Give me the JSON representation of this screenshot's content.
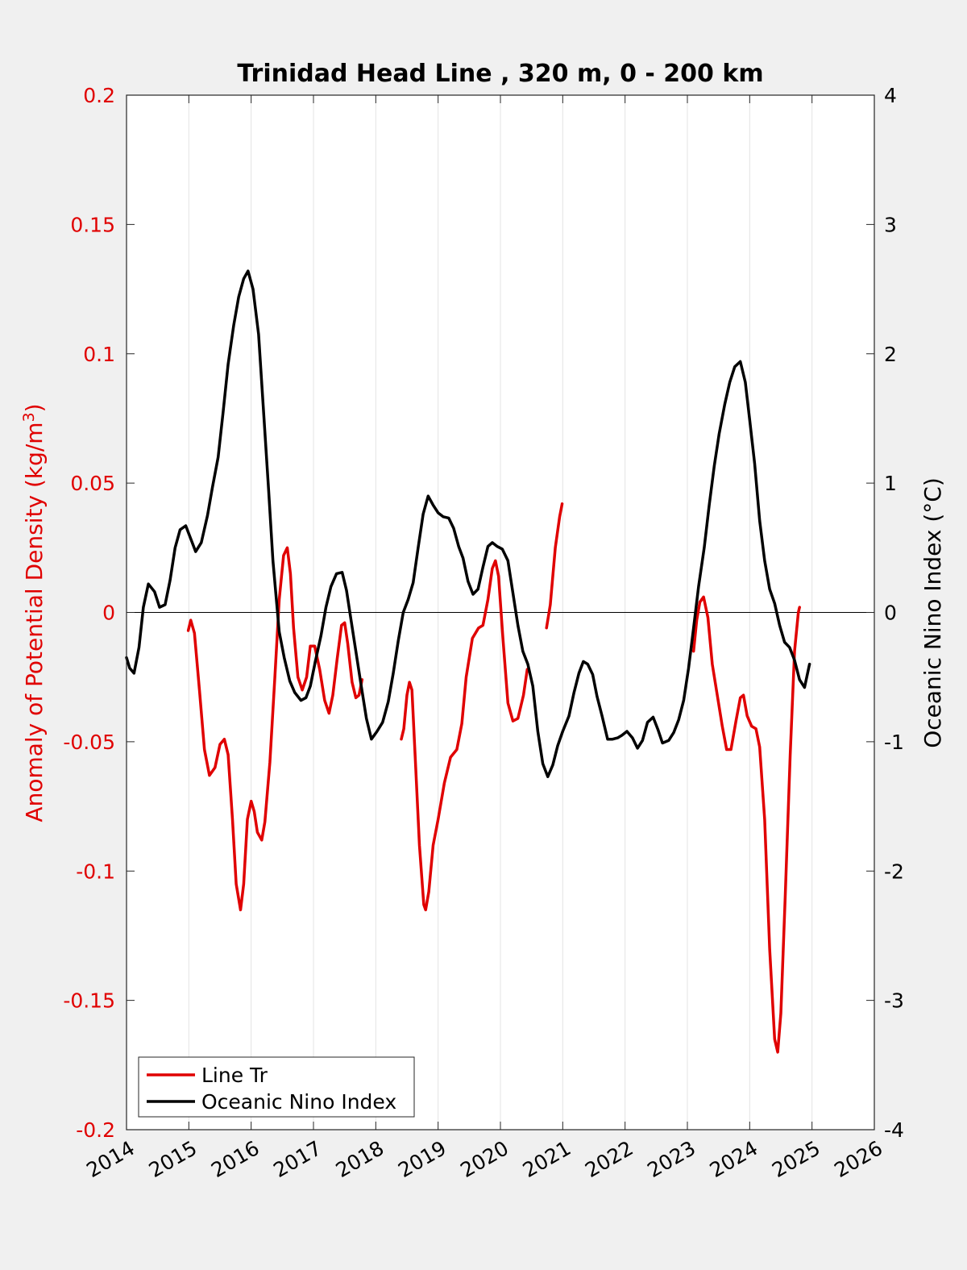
{
  "chart_data": {
    "type": "line",
    "title": "Trinidad Head Line , 320 m, 0 - 200 km",
    "xlabel": "",
    "xlim": [
      2014,
      2026
    ],
    "x_ticks": [
      "2014",
      "2015",
      "2016",
      "2017",
      "2018",
      "2019",
      "2020",
      "2021",
      "2022",
      "2023",
      "2024",
      "2025",
      "2026"
    ],
    "y_left": {
      "label": "Anomaly of Potential Density (kg/m",
      "label_superscript": "3",
      "label_close": ")",
      "ylim": [
        -0.2,
        0.2
      ],
      "ticks": [
        "0.2",
        "0.15",
        "0.1",
        "0.05",
        "0",
        "-0.05",
        "-0.1",
        "-0.15",
        "-0.2"
      ],
      "color": "#e00000"
    },
    "y_right": {
      "label": "Oceanic Nino Index (°C)",
      "ylim": [
        -4,
        4
      ],
      "ticks": [
        "4",
        "3",
        "2",
        "1",
        "0",
        "-1",
        "-2",
        "-3",
        "-4"
      ],
      "color": "#000000"
    },
    "grid": "vertical",
    "legend_position": "bottom-left",
    "series": [
      {
        "name": "Line Tr",
        "axis": "left",
        "color": "#e00000",
        "segments": [
          [
            [
              2014.99,
              -0.007
            ],
            [
              2015.03,
              -0.003
            ],
            [
              2015.09,
              -0.008
            ],
            [
              2015.17,
              -0.03
            ],
            [
              2015.25,
              -0.053
            ],
            [
              2015.33,
              -0.063
            ],
            [
              2015.42,
              -0.06
            ],
            [
              2015.5,
              -0.051
            ],
            [
              2015.57,
              -0.049
            ],
            [
              2015.63,
              -0.055
            ],
            [
              2015.7,
              -0.08
            ],
            [
              2015.76,
              -0.105
            ],
            [
              2015.83,
              -0.115
            ],
            [
              2015.88,
              -0.105
            ],
            [
              2015.94,
              -0.08
            ],
            [
              2016.0,
              -0.073
            ],
            [
              2016.05,
              -0.077
            ],
            [
              2016.1,
              -0.085
            ],
            [
              2016.17,
              -0.088
            ],
            [
              2016.22,
              -0.081
            ],
            [
              2016.3,
              -0.058
            ],
            [
              2016.38,
              -0.025
            ],
            [
              2016.45,
              0.005
            ],
            [
              2016.52,
              0.022
            ],
            [
              2016.58,
              0.025
            ],
            [
              2016.63,
              0.015
            ],
            [
              2016.68,
              -0.006
            ],
            [
              2016.75,
              -0.025
            ],
            [
              2016.82,
              -0.03
            ],
            [
              2016.89,
              -0.025
            ],
            [
              2016.95,
              -0.013
            ],
            [
              2017.02,
              -0.013
            ],
            [
              2017.1,
              -0.022
            ],
            [
              2017.18,
              -0.034
            ],
            [
              2017.25,
              -0.039
            ],
            [
              2017.31,
              -0.032
            ],
            [
              2017.38,
              -0.018
            ],
            [
              2017.45,
              -0.005
            ],
            [
              2017.5,
              -0.004
            ],
            [
              2017.55,
              -0.012
            ],
            [
              2017.62,
              -0.027
            ],
            [
              2017.68,
              -0.033
            ],
            [
              2017.73,
              -0.032
            ],
            [
              2017.78,
              -0.026
            ]
          ],
          [
            [
              2018.41,
              -0.049
            ],
            [
              2018.45,
              -0.045
            ],
            [
              2018.5,
              -0.032
            ],
            [
              2018.54,
              -0.027
            ],
            [
              2018.58,
              -0.03
            ],
            [
              2018.63,
              -0.055
            ],
            [
              2018.7,
              -0.09
            ],
            [
              2018.77,
              -0.113
            ],
            [
              2018.8,
              -0.115
            ],
            [
              2018.85,
              -0.108
            ],
            [
              2018.92,
              -0.09
            ],
            [
              2019.0,
              -0.08
            ],
            [
              2019.1,
              -0.066
            ],
            [
              2019.2,
              -0.056
            ],
            [
              2019.3,
              -0.053
            ],
            [
              2019.38,
              -0.043
            ],
            [
              2019.45,
              -0.025
            ],
            [
              2019.55,
              -0.01
            ],
            [
              2019.65,
              -0.006
            ],
            [
              2019.72,
              -0.005
            ],
            [
              2019.8,
              0.005
            ],
            [
              2019.87,
              0.017
            ],
            [
              2019.92,
              0.02
            ],
            [
              2019.97,
              0.014
            ],
            [
              2020.04,
              -0.01
            ],
            [
              2020.12,
              -0.035
            ],
            [
              2020.2,
              -0.042
            ],
            [
              2020.28,
              -0.041
            ],
            [
              2020.37,
              -0.032
            ],
            [
              2020.43,
              -0.022
            ]
          ],
          [
            [
              2020.74,
              -0.006
            ],
            [
              2020.8,
              0.003
            ],
            [
              2020.88,
              0.025
            ],
            [
              2020.95,
              0.037
            ],
            [
              2020.99,
              0.042
            ]
          ],
          [
            [
              2023.1,
              -0.015
            ],
            [
              2023.15,
              -0.003
            ],
            [
              2023.2,
              0.004
            ],
            [
              2023.26,
              0.006
            ],
            [
              2023.33,
              -0.002
            ],
            [
              2023.4,
              -0.02
            ],
            [
              2023.48,
              -0.032
            ],
            [
              2023.56,
              -0.044
            ],
            [
              2023.63,
              -0.053
            ],
            [
              2023.7,
              -0.053
            ],
            [
              2023.78,
              -0.042
            ],
            [
              2023.85,
              -0.033
            ],
            [
              2023.9,
              -0.032
            ],
            [
              2023.96,
              -0.04
            ],
            [
              2024.03,
              -0.044
            ],
            [
              2024.1,
              -0.045
            ],
            [
              2024.16,
              -0.052
            ],
            [
              2024.24,
              -0.08
            ],
            [
              2024.32,
              -0.13
            ],
            [
              2024.4,
              -0.165
            ],
            [
              2024.45,
              -0.17
            ],
            [
              2024.5,
              -0.155
            ],
            [
              2024.57,
              -0.11
            ],
            [
              2024.65,
              -0.055
            ],
            [
              2024.72,
              -0.015
            ],
            [
              2024.78,
              0.0
            ],
            [
              2024.8,
              0.002
            ]
          ]
        ]
      },
      {
        "name": "Oceanic Nino Index",
        "axis": "right",
        "color": "#000000",
        "segments": [
          [
            [
              2014.0,
              -0.35
            ],
            [
              2014.05,
              -0.43
            ],
            [
              2014.12,
              -0.47
            ],
            [
              2014.2,
              -0.27
            ],
            [
              2014.27,
              0.04
            ],
            [
              2014.35,
              0.22
            ],
            [
              2014.45,
              0.16
            ],
            [
              2014.53,
              0.04
            ],
            [
              2014.62,
              0.06
            ],
            [
              2014.7,
              0.25
            ],
            [
              2014.78,
              0.5
            ],
            [
              2014.86,
              0.64
            ],
            [
              2014.95,
              0.67
            ],
            [
              2015.03,
              0.57
            ],
            [
              2015.11,
              0.47
            ],
            [
              2015.2,
              0.54
            ],
            [
              2015.3,
              0.75
            ],
            [
              2015.38,
              0.97
            ],
            [
              2015.47,
              1.2
            ],
            [
              2015.55,
              1.55
            ],
            [
              2015.63,
              1.92
            ],
            [
              2015.72,
              2.22
            ],
            [
              2015.8,
              2.44
            ],
            [
              2015.88,
              2.58
            ],
            [
              2015.95,
              2.64
            ],
            [
              2016.03,
              2.5
            ],
            [
              2016.12,
              2.15
            ],
            [
              2016.2,
              1.55
            ],
            [
              2016.28,
              0.95
            ],
            [
              2016.35,
              0.4
            ],
            [
              2016.45,
              -0.15
            ],
            [
              2016.53,
              -0.35
            ],
            [
              2016.62,
              -0.53
            ],
            [
              2016.7,
              -0.62
            ],
            [
              2016.8,
              -0.68
            ],
            [
              2016.88,
              -0.66
            ],
            [
              2016.95,
              -0.57
            ],
            [
              2017.03,
              -0.38
            ],
            [
              2017.12,
              -0.18
            ],
            [
              2017.2,
              0.04
            ],
            [
              2017.28,
              0.2
            ],
            [
              2017.37,
              0.3
            ],
            [
              2017.46,
              0.31
            ],
            [
              2017.53,
              0.17
            ],
            [
              2017.6,
              -0.05
            ],
            [
              2017.68,
              -0.3
            ],
            [
              2017.76,
              -0.55
            ],
            [
              2017.85,
              -0.82
            ],
            [
              2017.93,
              -0.98
            ],
            [
              2018.02,
              -0.92
            ],
            [
              2018.11,
              -0.85
            ],
            [
              2018.2,
              -0.69
            ],
            [
              2018.28,
              -0.47
            ],
            [
              2018.36,
              -0.22
            ],
            [
              2018.44,
              0.0
            ],
            [
              2018.52,
              0.1
            ],
            [
              2018.6,
              0.23
            ],
            [
              2018.68,
              0.5
            ],
            [
              2018.76,
              0.76
            ],
            [
              2018.84,
              0.9
            ],
            [
              2018.92,
              0.83
            ],
            [
              2019.0,
              0.77
            ],
            [
              2019.08,
              0.74
            ],
            [
              2019.17,
              0.73
            ],
            [
              2019.25,
              0.65
            ],
            [
              2019.33,
              0.51
            ],
            [
              2019.4,
              0.42
            ],
            [
              2019.48,
              0.24
            ],
            [
              2019.56,
              0.14
            ],
            [
              2019.64,
              0.18
            ],
            [
              2019.72,
              0.35
            ],
            [
              2019.8,
              0.51
            ],
            [
              2019.87,
              0.54
            ],
            [
              2019.95,
              0.51
            ],
            [
              2020.03,
              0.49
            ],
            [
              2020.12,
              0.4
            ],
            [
              2020.2,
              0.15
            ],
            [
              2020.28,
              -0.1
            ],
            [
              2020.36,
              -0.3
            ],
            [
              2020.44,
              -0.4
            ],
            [
              2020.52,
              -0.57
            ],
            [
              2020.6,
              -0.92
            ],
            [
              2020.68,
              -1.17
            ],
            [
              2020.76,
              -1.27
            ],
            [
              2020.84,
              -1.18
            ],
            [
              2020.92,
              -1.03
            ],
            [
              2021.0,
              -0.92
            ],
            [
              2021.1,
              -0.8
            ],
            [
              2021.18,
              -0.62
            ],
            [
              2021.26,
              -0.47
            ],
            [
              2021.33,
              -0.38
            ],
            [
              2021.4,
              -0.4
            ],
            [
              2021.48,
              -0.48
            ],
            [
              2021.55,
              -0.65
            ],
            [
              2021.63,
              -0.8
            ],
            [
              2021.72,
              -0.98
            ],
            [
              2021.8,
              -0.98
            ],
            [
              2021.88,
              -0.97
            ],
            [
              2021.95,
              -0.95
            ],
            [
              2022.03,
              -0.92
            ],
            [
              2022.12,
              -0.97
            ],
            [
              2022.2,
              -1.05
            ],
            [
              2022.28,
              -0.99
            ],
            [
              2022.36,
              -0.85
            ],
            [
              2022.45,
              -0.81
            ],
            [
              2022.53,
              -0.91
            ],
            [
              2022.6,
              -1.01
            ],
            [
              2022.7,
              -0.99
            ],
            [
              2022.78,
              -0.93
            ],
            [
              2022.86,
              -0.83
            ],
            [
              2022.94,
              -0.68
            ],
            [
              2023.02,
              -0.43
            ],
            [
              2023.1,
              -0.12
            ],
            [
              2023.18,
              0.2
            ],
            [
              2023.27,
              0.5
            ],
            [
              2023.35,
              0.83
            ],
            [
              2023.43,
              1.13
            ],
            [
              2023.51,
              1.38
            ],
            [
              2023.6,
              1.61
            ],
            [
              2023.68,
              1.78
            ],
            [
              2023.76,
              1.9
            ],
            [
              2023.85,
              1.94
            ],
            [
              2023.93,
              1.78
            ],
            [
              2024.0,
              1.49
            ],
            [
              2024.08,
              1.15
            ],
            [
              2024.16,
              0.71
            ],
            [
              2024.24,
              0.4
            ],
            [
              2024.32,
              0.18
            ],
            [
              2024.4,
              0.07
            ],
            [
              2024.48,
              -0.1
            ],
            [
              2024.56,
              -0.23
            ],
            [
              2024.64,
              -0.27
            ],
            [
              2024.72,
              -0.37
            ],
            [
              2024.8,
              -0.52
            ],
            [
              2024.88,
              -0.58
            ],
            [
              2024.96,
              -0.4
            ]
          ]
        ]
      }
    ]
  },
  "legend": {
    "items": [
      {
        "label": "Line Tr",
        "color": "#e00000"
      },
      {
        "label": "Oceanic Nino Index",
        "color": "#000000"
      }
    ]
  }
}
